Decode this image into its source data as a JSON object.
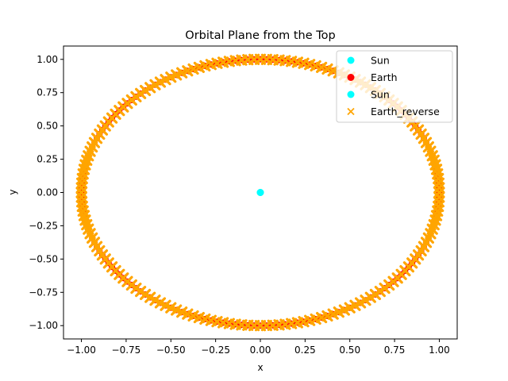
{
  "chart_data": {
    "type": "scatter",
    "title": "Orbital Plane from the Top",
    "xlabel": "x",
    "ylabel": "y",
    "xlim": [
      -1.1,
      1.1
    ],
    "ylim": [
      -1.1,
      1.1
    ],
    "xticks": [
      -1.0,
      -0.75,
      -0.5,
      -0.25,
      0.0,
      0.25,
      0.5,
      0.75,
      1.0
    ],
    "yticks": [
      -1.0,
      -0.75,
      -0.5,
      -0.25,
      0.0,
      0.25,
      0.5,
      0.75,
      1.0
    ],
    "xtick_labels": [
      "−1.00",
      "−0.75",
      "−0.50",
      "−0.25",
      "0.00",
      "0.25",
      "0.50",
      "0.75",
      "1.00"
    ],
    "ytick_labels": [
      "−1.00",
      "−0.75",
      "−0.50",
      "−0.25",
      "0.00",
      "0.25",
      "0.50",
      "0.75",
      "1.00"
    ],
    "grid": false,
    "legend_position": "top-right",
    "series": [
      {
        "name": "Sun",
        "marker": "circle",
        "color": "#00ffff",
        "points": [
          [
            0,
            0
          ]
        ]
      },
      {
        "name": "Earth",
        "marker": "circle",
        "color": "#ff0000",
        "orbit_radius": 1.0,
        "orbit_center": [
          0,
          0
        ],
        "point_count": 180
      },
      {
        "name": "Sun",
        "marker": "circle",
        "color": "#00ffff",
        "points": [
          [
            0,
            0
          ]
        ]
      },
      {
        "name": "Earth_reverse",
        "marker": "x",
        "color": "#ffa500",
        "orbit_radius": 1.0,
        "orbit_center": [
          0,
          0
        ],
        "point_count": 180
      }
    ]
  }
}
